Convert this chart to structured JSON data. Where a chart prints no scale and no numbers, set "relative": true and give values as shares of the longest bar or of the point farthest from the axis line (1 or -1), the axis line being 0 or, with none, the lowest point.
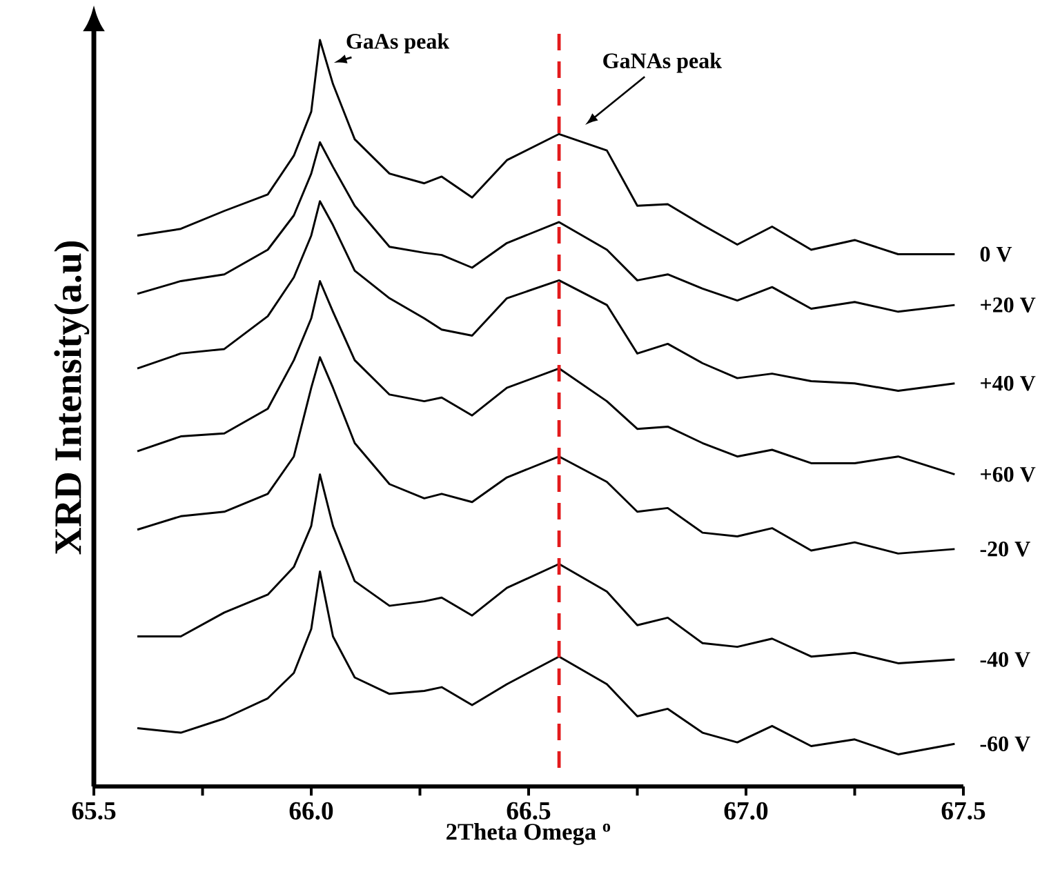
{
  "chart_data": {
    "type": "line",
    "relative": true,
    "xlabel": "2Theta Omega $^{o}$",
    "ylabel": "XRD Intensity(a.u)",
    "xlim": [
      65.5,
      67.5
    ],
    "xticks": [
      65.5,
      {
        "value": 65.75,
        "label": null
      },
      {
        "value": 66,
        "label": "66.0"
      },
      {
        "value": 66.25,
        "label": null
      },
      66.5,
      {
        "value": 66.75,
        "label": null
      },
      {
        "value": 67,
        "label": "67.0"
      },
      {
        "value": 67.25,
        "label": null
      },
      67.5
    ],
    "tick_labels": "x",
    "x": [
      65.6,
      65.7,
      65.8,
      65.9,
      65.96,
      66.0,
      66.02,
      66.05,
      66.1,
      66.18,
      66.26,
      66.3,
      66.37,
      66.45,
      66.57,
      66.68,
      66.75,
      66.82,
      66.9,
      66.98,
      67.06,
      67.15,
      67.25,
      67.35,
      67.48
    ],
    "series": [
      {
        "name": "0 V",
        "color": "#000000",
        "values": [
          0.738,
          0.747,
          0.771,
          0.793,
          0.845,
          0.904,
          1.0,
          0.941,
          0.867,
          0.821,
          0.808,
          0.817,
          0.789,
          0.839,
          0.874,
          0.852,
          0.778,
          0.78,
          0.752,
          0.726,
          0.75,
          0.719,
          0.732,
          0.713,
          0.713
        ]
      },
      {
        "name": "+20 V",
        "color": "#000000",
        "values": [
          0.66,
          0.677,
          0.686,
          0.719,
          0.765,
          0.821,
          0.863,
          0.83,
          0.778,
          0.723,
          0.715,
          0.712,
          0.695,
          0.728,
          0.756,
          0.719,
          0.678,
          0.686,
          0.667,
          0.651,
          0.669,
          0.64,
          0.649,
          0.636,
          0.645
        ]
      },
      {
        "name": "+40 V",
        "color": "#000000",
        "values": [
          0.56,
          0.58,
          0.586,
          0.63,
          0.682,
          0.738,
          0.784,
          0.752,
          0.691,
          0.654,
          0.627,
          0.612,
          0.604,
          0.654,
          0.678,
          0.645,
          0.58,
          0.593,
          0.567,
          0.547,
          0.553,
          0.543,
          0.54,
          0.53,
          0.54
        ]
      },
      {
        "name": "+60 V",
        "color": "#000000",
        "values": [
          0.449,
          0.469,
          0.473,
          0.506,
          0.571,
          0.627,
          0.677,
          0.636,
          0.571,
          0.525,
          0.516,
          0.521,
          0.497,
          0.534,
          0.56,
          0.516,
          0.479,
          0.482,
          0.46,
          0.442,
          0.451,
          0.433,
          0.433,
          0.442,
          0.418
        ]
      },
      {
        "name": "-20 V",
        "color": "#000000",
        "values": [
          0.344,
          0.362,
          0.368,
          0.392,
          0.442,
          0.534,
          0.575,
          0.534,
          0.46,
          0.405,
          0.386,
          0.392,
          0.381,
          0.414,
          0.442,
          0.408,
          0.368,
          0.373,
          0.34,
          0.335,
          0.346,
          0.316,
          0.327,
          0.312,
          0.318
        ]
      },
      {
        "name": "-40 V",
        "color": "#000000",
        "values": [
          0.201,
          0.201,
          0.233,
          0.257,
          0.294,
          0.349,
          0.418,
          0.349,
          0.275,
          0.242,
          0.248,
          0.253,
          0.229,
          0.266,
          0.298,
          0.261,
          0.216,
          0.226,
          0.192,
          0.187,
          0.198,
          0.174,
          0.179,
          0.165,
          0.17
        ]
      },
      {
        "name": "-60 V",
        "color": "#000000",
        "values": [
          0.078,
          0.072,
          0.091,
          0.118,
          0.152,
          0.211,
          0.288,
          0.201,
          0.146,
          0.124,
          0.128,
          0.133,
          0.109,
          0.137,
          0.174,
          0.137,
          0.094,
          0.104,
          0.072,
          0.059,
          0.081,
          0.054,
          0.063,
          0.043,
          0.057
        ]
      }
    ],
    "ref_lines": [
      {
        "axis": "x",
        "value": 66.57,
        "color": "#e31a1c",
        "line_style": "dashed"
      }
    ],
    "annotations": [
      "GaAs peak",
      "GaNAs peak"
    ]
  }
}
